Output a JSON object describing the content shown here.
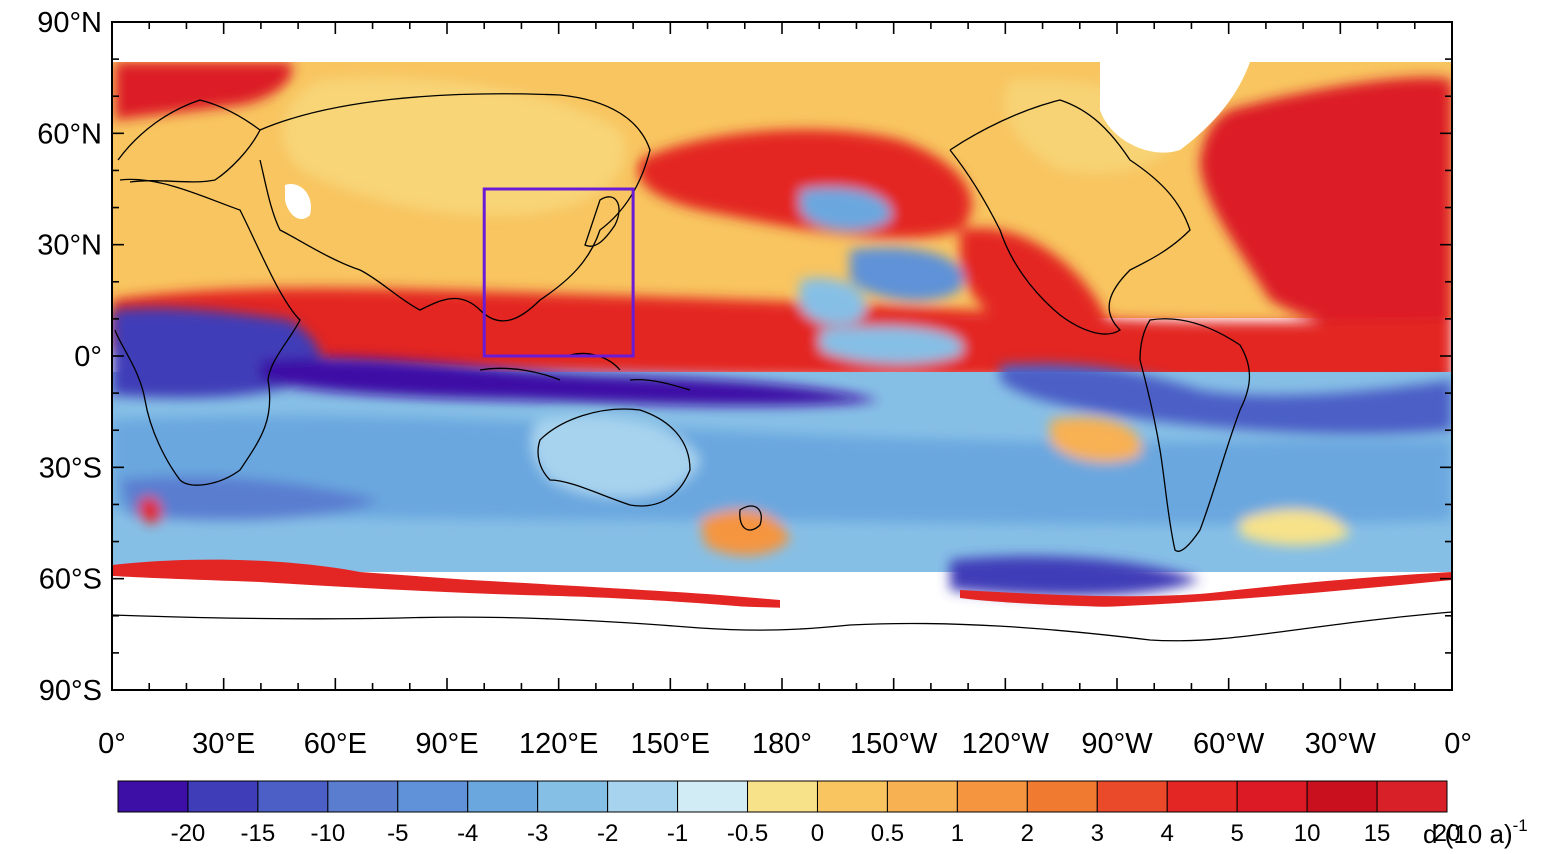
{
  "map": {
    "lat_labels": [
      {
        "lat": 90,
        "text": "90°N"
      },
      {
        "lat": 60,
        "text": "60°N"
      },
      {
        "lat": 30,
        "text": "30°N"
      },
      {
        "lat": 0,
        "text": "0°"
      },
      {
        "lat": -30,
        "text": "30°S"
      },
      {
        "lat": -60,
        "text": "60°S"
      },
      {
        "lat": -90,
        "text": "90°S"
      }
    ],
    "lon_labels": [
      {
        "lon": 0,
        "text": "0°"
      },
      {
        "lon": 30,
        "text": "30°E"
      },
      {
        "lon": 60,
        "text": "60°E"
      },
      {
        "lon": 90,
        "text": "90°E"
      },
      {
        "lon": 120,
        "text": "120°E"
      },
      {
        "lon": 150,
        "text": "150°E"
      },
      {
        "lon": 180,
        "text": "180°"
      },
      {
        "lon": 210,
        "text": "150°W"
      },
      {
        "lon": 240,
        "text": "120°W"
      },
      {
        "lon": 270,
        "text": "90°W"
      },
      {
        "lon": 300,
        "text": "60°W"
      },
      {
        "lon": 330,
        "text": "30°W"
      },
      {
        "lon": 360,
        "text": "0°"
      }
    ],
    "highlight_box": {
      "lon_min": 100,
      "lon_max": 140,
      "lat_min": 0,
      "lat_max": 45,
      "color": "#6a1bd6"
    }
  },
  "colorbar": {
    "colors": [
      "#3d0fa6",
      "#3f3db8",
      "#4c5fc6",
      "#5a7dd0",
      "#5f92d8",
      "#6aa7df",
      "#86bfe6",
      "#a7d3ee",
      "#d2ecf6",
      "#f7e28a",
      "#f8c560",
      "#f8b152",
      "#f59540",
      "#f07a30",
      "#ea4a2a",
      "#e32624",
      "#dc1a25",
      "#c8101e",
      "#d82028"
    ],
    "labels": [
      "-20",
      "-15",
      "-10",
      "-5",
      "-4",
      "-3",
      "-2",
      "-1",
      "-0.5",
      "0",
      "0.5",
      "1",
      "2",
      "3",
      "4",
      "5",
      "10",
      "15",
      "20"
    ],
    "unit": "d (10 a)",
    "unit_exponent": "-1"
  }
}
